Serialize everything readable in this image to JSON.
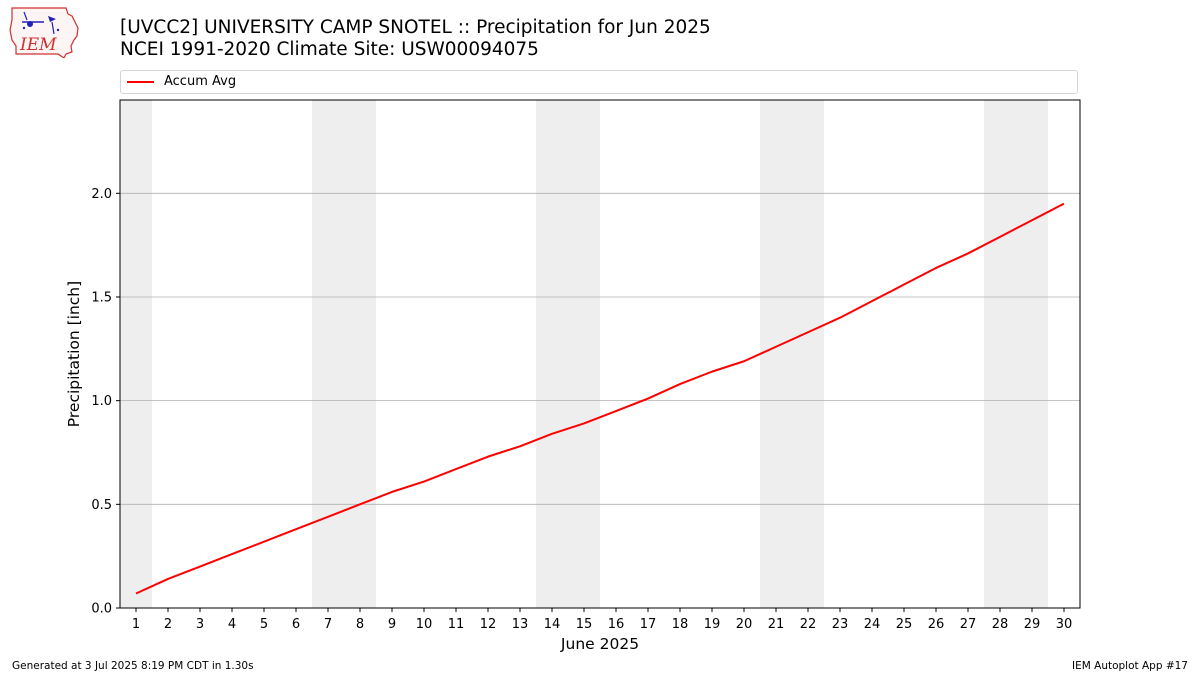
{
  "header": {
    "title_line1": "[UVCC2] UNIVERSITY CAMP SNOTEL :: Precipitation for Jun 2025",
    "title_line2": "NCEI 1991-2020 Climate Site: USW00094075"
  },
  "logo": {
    "text": "IEM"
  },
  "footer": {
    "generated": "Generated at 3 Jul 2025 8:19 PM CDT in 1.30s",
    "app": "IEM Autoplot App #17"
  },
  "colors": {
    "series": "#ff0000",
    "weekend_shade": "#eeeeee",
    "grid": "#b0b0b0"
  },
  "chart_data": {
    "type": "line",
    "title": "[UVCC2] UNIVERSITY CAMP SNOTEL :: Precipitation for Jun 2025",
    "subtitle": "NCEI 1991-2020 Climate Site: USW00094075",
    "xlabel": "June 2025",
    "ylabel": "Precipitation [inch]",
    "x": [
      1,
      2,
      3,
      4,
      5,
      6,
      7,
      8,
      9,
      10,
      11,
      12,
      13,
      14,
      15,
      16,
      17,
      18,
      19,
      20,
      21,
      22,
      23,
      24,
      25,
      26,
      27,
      28,
      29,
      30
    ],
    "xlim": [
      0.5,
      30.5
    ],
    "ylim": [
      0,
      2.45
    ],
    "yticks": [
      0.0,
      0.5,
      1.0,
      1.5,
      2.0
    ],
    "ytick_labels": [
      "0.0",
      "0.5",
      "1.0",
      "1.5",
      "2.0"
    ],
    "grid": "y",
    "legend_position": "top",
    "shaded_days": [
      1,
      7,
      8,
      14,
      15,
      21,
      22,
      28,
      29
    ],
    "series": [
      {
        "name": "Accum Avg",
        "color": "#ff0000",
        "values": [
          0.07,
          0.14,
          0.2,
          0.26,
          0.32,
          0.38,
          0.44,
          0.5,
          0.56,
          0.61,
          0.67,
          0.73,
          0.78,
          0.84,
          0.89,
          0.95,
          1.01,
          1.08,
          1.14,
          1.19,
          1.26,
          1.33,
          1.4,
          1.48,
          1.56,
          1.64,
          1.71,
          1.79,
          1.87,
          1.95
        ]
      }
    ]
  }
}
